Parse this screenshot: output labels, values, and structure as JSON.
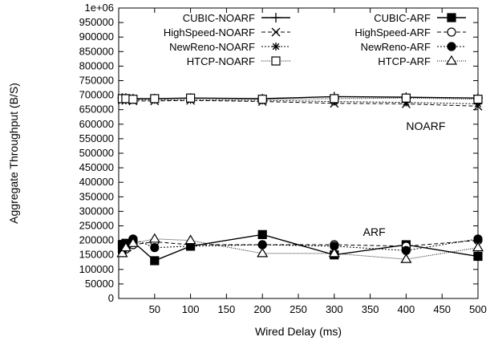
{
  "chart_data": {
    "type": "line",
    "xlabel": "Wired Delay (ms)",
    "ylabel": "Aggregate Throughput (B/S)",
    "xlim": [
      0,
      500
    ],
    "ylim": [
      0,
      1000000
    ],
    "x_ticks": [
      "50",
      "100",
      "150",
      "200",
      "250",
      "300",
      "350",
      "400",
      "450",
      "500"
    ],
    "y_ticks": [
      "0",
      "50000",
      "100000",
      "150000",
      "200000",
      "250000",
      "300000",
      "350000",
      "400000",
      "450000",
      "500000",
      "550000",
      "600000",
      "650000",
      "700000",
      "750000",
      "800000",
      "850000",
      "900000",
      "950000",
      "1e+06"
    ],
    "grid": false,
    "legend_placement": "top",
    "annotations": [
      {
        "text": "NOARF",
        "x": 400,
        "y": 580000
      },
      {
        "text": "ARF",
        "x": 340,
        "y": 215000
      }
    ],
    "x": [
      5,
      10,
      20,
      50,
      100,
      200,
      300,
      400,
      500
    ],
    "series": [
      {
        "name": "CUBIC-NOARF",
        "marker": "plus",
        "dash": "solid",
        "fill": "none",
        "values": [
          690000,
          690000,
          688000,
          688000,
          690000,
          688000,
          695000,
          693000,
          690000
        ]
      },
      {
        "name": "HighSpeed-NOARF",
        "marker": "x",
        "dash": "dashed",
        "fill": "none",
        "values": [
          683000,
          682000,
          680000,
          680000,
          682000,
          678000,
          672000,
          670000,
          662000
        ]
      },
      {
        "name": "NewReno-NOARF",
        "marker": "asterisk",
        "dash": "dotted",
        "fill": "none",
        "values": [
          686000,
          685000,
          684000,
          684000,
          684000,
          682000,
          678000,
          675000,
          670000
        ]
      },
      {
        "name": "HTCP-NOARF",
        "marker": "square",
        "dash": "finedotted",
        "fill": "none",
        "values": [
          688000,
          688000,
          686000,
          688000,
          690000,
          686000,
          688000,
          690000,
          686000
        ]
      },
      {
        "name": "CUBIC-ARF",
        "marker": "square",
        "dash": "solid",
        "fill": "solid",
        "values": [
          185000,
          190000,
          195000,
          130000,
          180000,
          220000,
          150000,
          185000,
          145000
        ]
      },
      {
        "name": "HighSpeed-ARF",
        "marker": "circle",
        "dash": "dashed",
        "fill": "none",
        "values": [
          160000,
          170000,
          185000,
          195000,
          185000,
          185000,
          185000,
          180000,
          200000
        ]
      },
      {
        "name": "NewReno-ARF",
        "marker": "circle",
        "dash": "dotted",
        "fill": "solid",
        "values": [
          165000,
          180000,
          205000,
          175000,
          180000,
          185000,
          180000,
          165000,
          205000
        ]
      },
      {
        "name": "HTCP-ARF",
        "marker": "triangle",
        "dash": "finedotted",
        "fill": "none",
        "values": [
          155000,
          175000,
          190000,
          205000,
          200000,
          155000,
          155000,
          135000,
          175000
        ]
      }
    ]
  }
}
